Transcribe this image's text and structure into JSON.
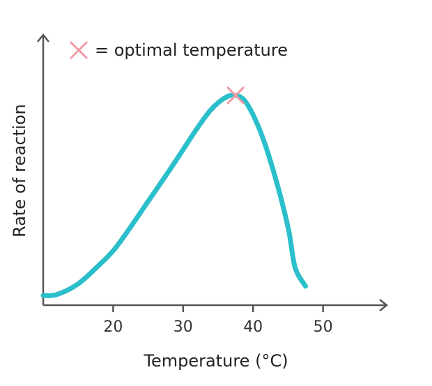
{
  "chart_data": {
    "type": "line",
    "xlabel": "Temperature (°C)",
    "ylabel": "Rate of reaction",
    "xlim": [
      10,
      60
    ],
    "ylim": [
      0,
      100
    ],
    "x_ticks": [
      20,
      30,
      40,
      50
    ],
    "y_ticks": [],
    "grid": false,
    "series": [
      {
        "color": "#2bbfcc",
        "x": [
          10,
          12,
          15,
          18,
          20,
          22,
          25,
          28,
          30,
          32,
          34,
          36,
          37.5,
          39,
          41,
          43,
          45,
          46,
          47.5
        ],
        "y": [
          2,
          2.5,
          7,
          15,
          21,
          29,
          42,
          55,
          64,
          73,
          81,
          86,
          87,
          84,
          72,
          54,
          31,
          14,
          6
        ]
      }
    ],
    "annotations": [
      {
        "marker": "×",
        "x": 37.5,
        "y": 87,
        "color": "#f29aa5"
      }
    ],
    "legend": {
      "marker": "×",
      "text": "= optimal temperature",
      "marker_color": "#f29aa5",
      "placement": "top-left"
    }
  }
}
